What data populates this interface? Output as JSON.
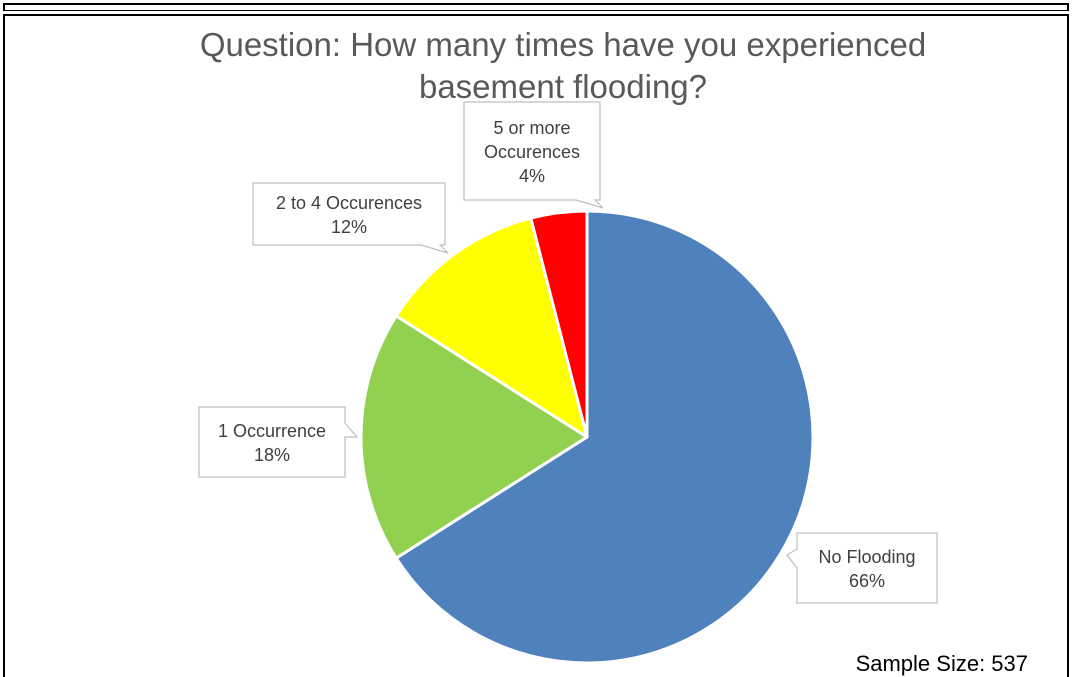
{
  "chart_data": {
    "type": "pie",
    "title_lines": [
      "Question: How many times have you experienced",
      "basement flooding?"
    ],
    "slices": [
      {
        "label_lines": [
          "No Flooding"
        ],
        "percent_label": "66%",
        "value": 66,
        "color": "#4f81bd"
      },
      {
        "label_lines": [
          "1 Occurrence"
        ],
        "percent_label": "18%",
        "value": 18,
        "color": "#92d050"
      },
      {
        "label_lines": [
          "2 to 4 Occurences"
        ],
        "percent_label": "12%",
        "value": 12,
        "color": "#ffff00"
      },
      {
        "label_lines": [
          "5 or more",
          "Occurences"
        ],
        "percent_label": "4%",
        "value": 4,
        "color": "#ff0000"
      }
    ],
    "start": "12 o'clock",
    "direction": "clockwise",
    "legend": "none",
    "footnote": "Sample Size: 537"
  }
}
